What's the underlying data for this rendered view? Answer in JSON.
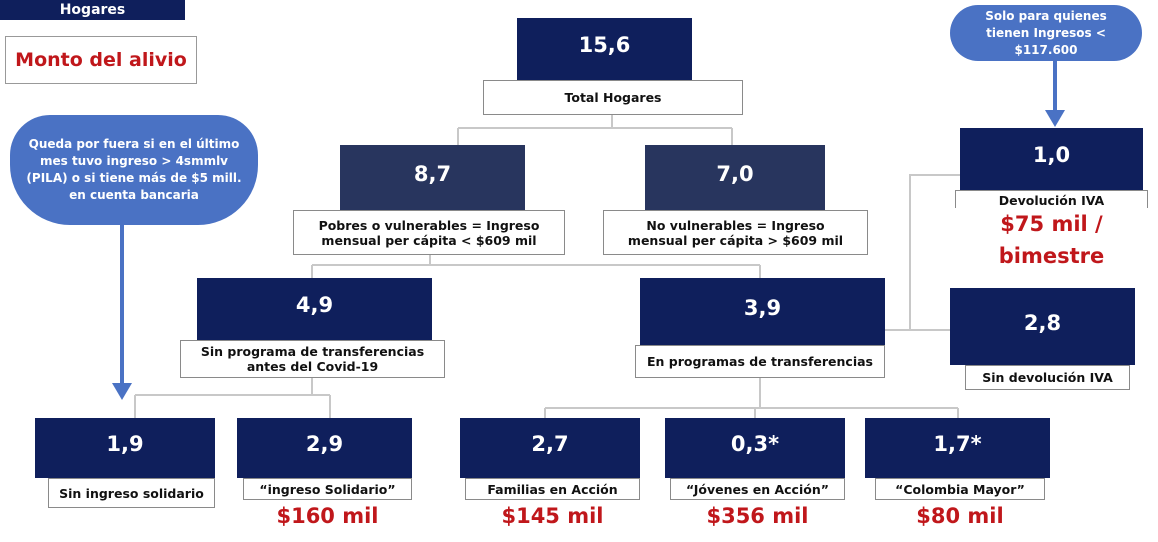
{
  "legend": {
    "households": "Hogares",
    "relief_amount": "Monto del alivio"
  },
  "notes": [
    "Queda por fuera si en el último mes tuvo ingreso > 4smmlv (PILA) o si tiene más de $5 mill. en cuenta bancaria",
    "Solo para quienes tienen Ingresos < $117.600"
  ],
  "nodes": [
    {
      "value": "15,6",
      "label": [
        "Total Hogares"
      ]
    },
    {
      "value": "8,7",
      "label": [
        "Pobres o vulnerables = Ingreso",
        "mensual per cápita < $609 mil"
      ]
    },
    {
      "value": "7,0",
      "label": [
        "No vulnerables = Ingreso",
        "mensual per cápita > $609 mil"
      ]
    },
    {
      "value": "1,0",
      "label": [
        "Devolución IVA"
      ],
      "amount": "$75 mil / bimestre"
    },
    {
      "value": "4,9",
      "label": [
        "Sin programa de transferencias",
        "antes del Covid-19"
      ]
    },
    {
      "value": "3,9",
      "label": [
        "En programas de transferencias"
      ]
    },
    {
      "value": "2,8",
      "label": [
        "Sin devolución IVA"
      ]
    },
    {
      "value": "1,9",
      "label": [
        "Sin ingreso solidario"
      ]
    },
    {
      "value": "2,9",
      "label": [
        "“ingreso Solidario”"
      ],
      "amount": "$160 mil"
    },
    {
      "value": "2,7",
      "label": [
        "Familias en Acción"
      ],
      "amount": "$145 mil"
    },
    {
      "value": "0,3*",
      "label": [
        "“Jóvenes en Acción”"
      ],
      "amount": "$356 mil"
    },
    {
      "value": "1,7*",
      "label": [
        "“Colombia Mayor”"
      ],
      "amount": "$80 mil"
    }
  ]
}
